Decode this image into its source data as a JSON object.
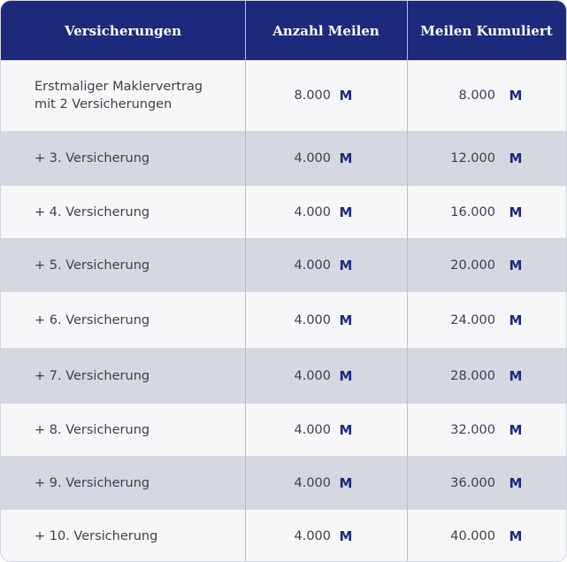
{
  "header": {
    "col1": "Versicherungen",
    "col2": "Anzahl Meilen",
    "col3": "Meilen Kumuliert"
  },
  "mile_symbol": "M",
  "rows": [
    {
      "label": "Erstmaliger Maklervertrag mit 2 Versicherungen",
      "miles": "8.000",
      "cumulative": "8.000"
    },
    {
      "label": "+ 3. Versicherung",
      "miles": "4.000",
      "cumulative": "12.000"
    },
    {
      "label": "+ 4. Versicherung",
      "miles": "4.000",
      "cumulative": "16.000"
    },
    {
      "label": "+ 5. Versicherung",
      "miles": "4.000",
      "cumulative": "20.000"
    },
    {
      "label": "+ 6. Versicherung",
      "miles": "4.000",
      "cumulative": "24.000"
    },
    {
      "label": "+ 7. Versicherung",
      "miles": "4.000",
      "cumulative": "28.000"
    },
    {
      "label": "+ 8. Versicherung",
      "miles": "4.000",
      "cumulative": "32.000"
    },
    {
      "label": "+ 9. Versicherung",
      "miles": "4.000",
      "cumulative": "36.000"
    },
    {
      "label": "+ 10. Versicherung",
      "miles": "4.000",
      "cumulative": "40.000"
    }
  ],
  "colors": {
    "header_bg": "#1d2a7c",
    "row_alt_bg": "#d5d8e1",
    "row_bg": "#f7f7f9",
    "mile_icon": "#1d2a7c"
  }
}
